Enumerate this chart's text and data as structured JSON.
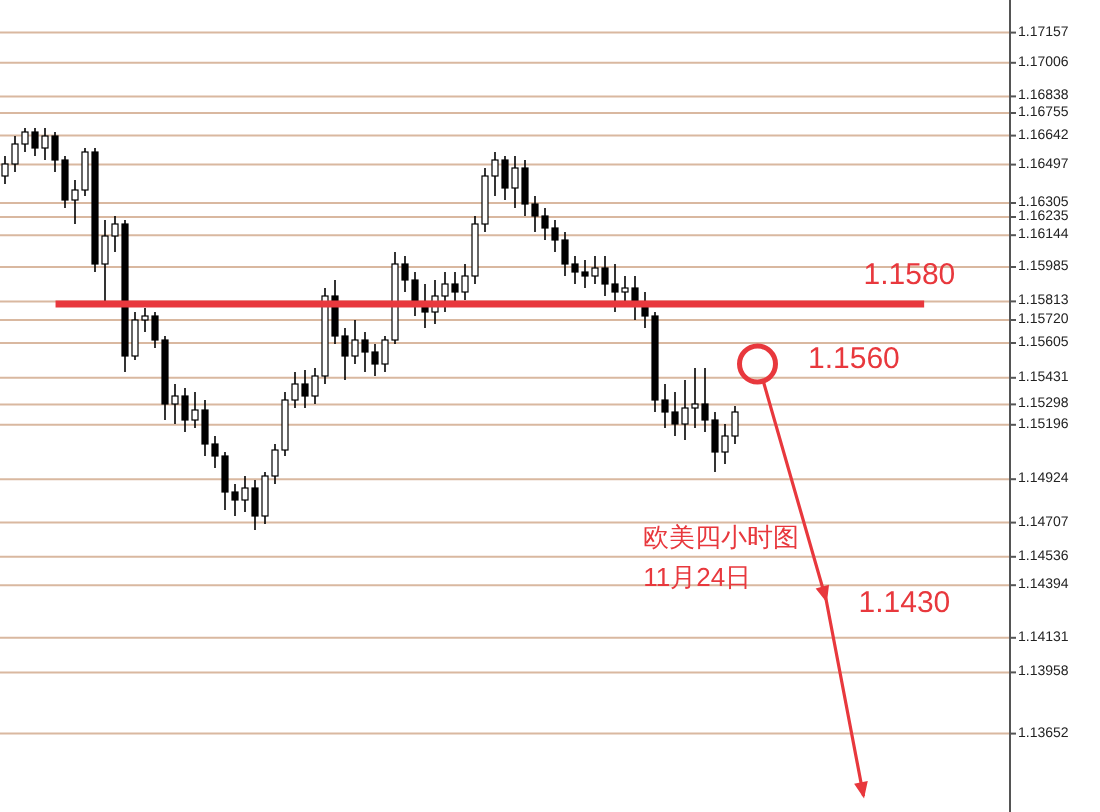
{
  "chart_data": {
    "type": "candlestick",
    "categories": [
      null,
      null,
      null,
      null,
      null,
      null,
      null,
      null,
      null,
      null,
      null,
      null,
      null,
      null,
      null,
      null,
      null,
      null,
      null,
      null,
      null,
      null,
      null,
      null,
      null,
      null,
      null,
      null,
      null,
      null,
      null,
      null,
      null,
      null,
      null,
      null,
      null,
      null,
      null,
      null,
      null,
      null,
      null,
      null,
      null,
      null,
      null,
      null,
      null,
      null,
      null,
      null,
      null,
      null,
      null,
      null,
      null,
      null,
      null,
      null,
      null,
      null,
      null,
      null,
      null,
      null,
      null,
      null,
      null,
      null,
      null,
      null,
      null,
      null,
      null,
      null,
      null,
      null,
      null,
      null,
      null,
      null,
      null,
      null,
      null,
      null,
      null,
      null,
      null,
      null,
      null,
      null,
      null,
      null,
      null,
      null,
      null,
      null,
      null,
      null,
      null
    ],
    "ohlc": [
      [
        1.1644,
        1.1654,
        1.164,
        1.165
      ],
      [
        1.165,
        1.1664,
        1.1646,
        1.166
      ],
      [
        1.166,
        1.1668,
        1.1656,
        1.1666
      ],
      [
        1.1666,
        1.1668,
        1.1654,
        1.1658
      ],
      [
        1.1658,
        1.1668,
        1.1652,
        1.1664
      ],
      [
        1.1664,
        1.1666,
        1.1646,
        1.1652
      ],
      [
        1.1652,
        1.1654,
        1.1628,
        1.1632
      ],
      [
        1.1632,
        1.1642,
        1.162,
        1.1637
      ],
      [
        1.1637,
        1.1658,
        1.1634,
        1.1656
      ],
      [
        1.1656,
        1.1658,
        1.1596,
        1.16
      ],
      [
        1.16,
        1.1622,
        1.158,
        1.1614
      ],
      [
        1.1614,
        1.1624,
        1.1606,
        1.162
      ],
      [
        1.162,
        1.1622,
        1.1546,
        1.1554
      ],
      [
        1.1554,
        1.1576,
        1.1552,
        1.1572
      ],
      [
        1.1572,
        1.1578,
        1.1566,
        1.1574
      ],
      [
        1.1574,
        1.1576,
        1.1558,
        1.1562
      ],
      [
        1.1562,
        1.1564,
        1.1522,
        1.153
      ],
      [
        1.153,
        1.154,
        1.152,
        1.1534
      ],
      [
        1.1534,
        1.1538,
        1.1516,
        1.1522
      ],
      [
        1.1522,
        1.1536,
        1.1518,
        1.1527
      ],
      [
        1.1527,
        1.1532,
        1.1504,
        1.151
      ],
      [
        1.151,
        1.1514,
        1.1498,
        1.1504
      ],
      [
        1.1504,
        1.1506,
        1.1477,
        1.1486
      ],
      [
        1.1486,
        1.149,
        1.1474,
        1.1482
      ],
      [
        1.1482,
        1.1494,
        1.1476,
        1.1488
      ],
      [
        1.1488,
        1.1492,
        1.1467,
        1.1474
      ],
      [
        1.1474,
        1.1496,
        1.147,
        1.1494
      ],
      [
        1.1494,
        1.151,
        1.149,
        1.1507
      ],
      [
        1.1507,
        1.1536,
        1.1504,
        1.1532
      ],
      [
        1.1532,
        1.1546,
        1.1528,
        1.154
      ],
      [
        1.154,
        1.1547,
        1.1528,
        1.1534
      ],
      [
        1.1534,
        1.1548,
        1.153,
        1.1544
      ],
      [
        1.1544,
        1.1588,
        1.154,
        1.1584
      ],
      [
        1.1584,
        1.1592,
        1.156,
        1.1564
      ],
      [
        1.1564,
        1.1568,
        1.1542,
        1.1554
      ],
      [
        1.1554,
        1.1572,
        1.155,
        1.1562
      ],
      [
        1.1562,
        1.1566,
        1.1546,
        1.1556
      ],
      [
        1.1556,
        1.156,
        1.1544,
        1.155
      ],
      [
        1.155,
        1.1564,
        1.1546,
        1.1562
      ],
      [
        1.1562,
        1.1606,
        1.156,
        1.16
      ],
      [
        1.16,
        1.1604,
        1.1586,
        1.1592
      ],
      [
        1.1592,
        1.1596,
        1.1574,
        1.158
      ],
      [
        1.158,
        1.159,
        1.1568,
        1.1576
      ],
      [
        1.1576,
        1.1592,
        1.157,
        1.1584
      ],
      [
        1.1584,
        1.1596,
        1.1576,
        1.159
      ],
      [
        1.159,
        1.1596,
        1.158,
        1.1586
      ],
      [
        1.1586,
        1.16,
        1.1582,
        1.1594
      ],
      [
        1.1594,
        1.1624,
        1.159,
        1.162
      ],
      [
        1.162,
        1.1648,
        1.1616,
        1.1644
      ],
      [
        1.1644,
        1.1656,
        1.1634,
        1.1652
      ],
      [
        1.1652,
        1.1654,
        1.1632,
        1.1638
      ],
      [
        1.1638,
        1.1654,
        1.1628,
        1.1648
      ],
      [
        1.1648,
        1.1652,
        1.1624,
        1.163
      ],
      [
        1.163,
        1.1634,
        1.1616,
        1.1624
      ],
      [
        1.1624,
        1.1628,
        1.1612,
        1.1618
      ],
      [
        1.1618,
        1.1622,
        1.1606,
        1.1612
      ],
      [
        1.1612,
        1.1616,
        1.1594,
        1.16
      ],
      [
        1.16,
        1.1604,
        1.159,
        1.1596
      ],
      [
        1.1596,
        1.1602,
        1.1588,
        1.1594
      ],
      [
        1.1594,
        1.1604,
        1.159,
        1.1598
      ],
      [
        1.1598,
        1.1604,
        1.1584,
        1.159
      ],
      [
        1.159,
        1.16,
        1.1576,
        1.1586
      ],
      [
        1.1586,
        1.1594,
        1.158,
        1.1588
      ],
      [
        1.1588,
        1.1594,
        1.1572,
        1.158
      ],
      [
        1.158,
        1.1586,
        1.1568,
        1.1574
      ],
      [
        1.1574,
        1.1576,
        1.1526,
        1.1532
      ],
      [
        1.1532,
        1.154,
        1.1518,
        1.1526
      ],
      [
        1.1526,
        1.1536,
        1.1514,
        1.152
      ],
      [
        1.152,
        1.1542,
        1.1512,
        1.1528
      ],
      [
        1.1528,
        1.1548,
        1.1518,
        1.153
      ],
      [
        1.153,
        1.1548,
        1.1516,
        1.1522
      ],
      [
        1.1522,
        1.1526,
        1.1496,
        1.1506
      ],
      [
        1.1506,
        1.152,
        1.15,
        1.1514
      ],
      [
        1.1514,
        1.1529,
        1.151,
        1.1526
      ],
      null,
      null,
      null,
      null,
      null,
      null,
      null,
      null,
      null,
      null,
      null,
      null,
      null,
      null,
      null,
      null,
      null,
      null,
      null,
      null,
      null,
      null,
      null,
      null,
      null,
      null,
      null
    ],
    "ylim": [
      1.1326,
      1.1732
    ],
    "yticks": [
      1.17157,
      1.17006,
      1.16838,
      1.16755,
      1.16642,
      1.16497,
      1.16305,
      1.16235,
      1.16144,
      1.15985,
      1.15813,
      {
        "value": 1.1572,
        "label": "1.15720"
      },
      1.15605,
      1.15431,
      1.15298,
      1.15196,
      1.14924,
      1.14707,
      1.14536,
      1.14394,
      1.14131,
      1.13958,
      1.13652
    ],
    "grid": "y",
    "tick_labels": "y",
    "ref_lines": [
      {
        "axis": "y",
        "value": 1.158,
        "label": "1.1580",
        "color": "#e8383d"
      }
    ],
    "annotations": [
      "1.1560",
      "1.1430",
      "欧美四小时图",
      "11月24日"
    ]
  }
}
